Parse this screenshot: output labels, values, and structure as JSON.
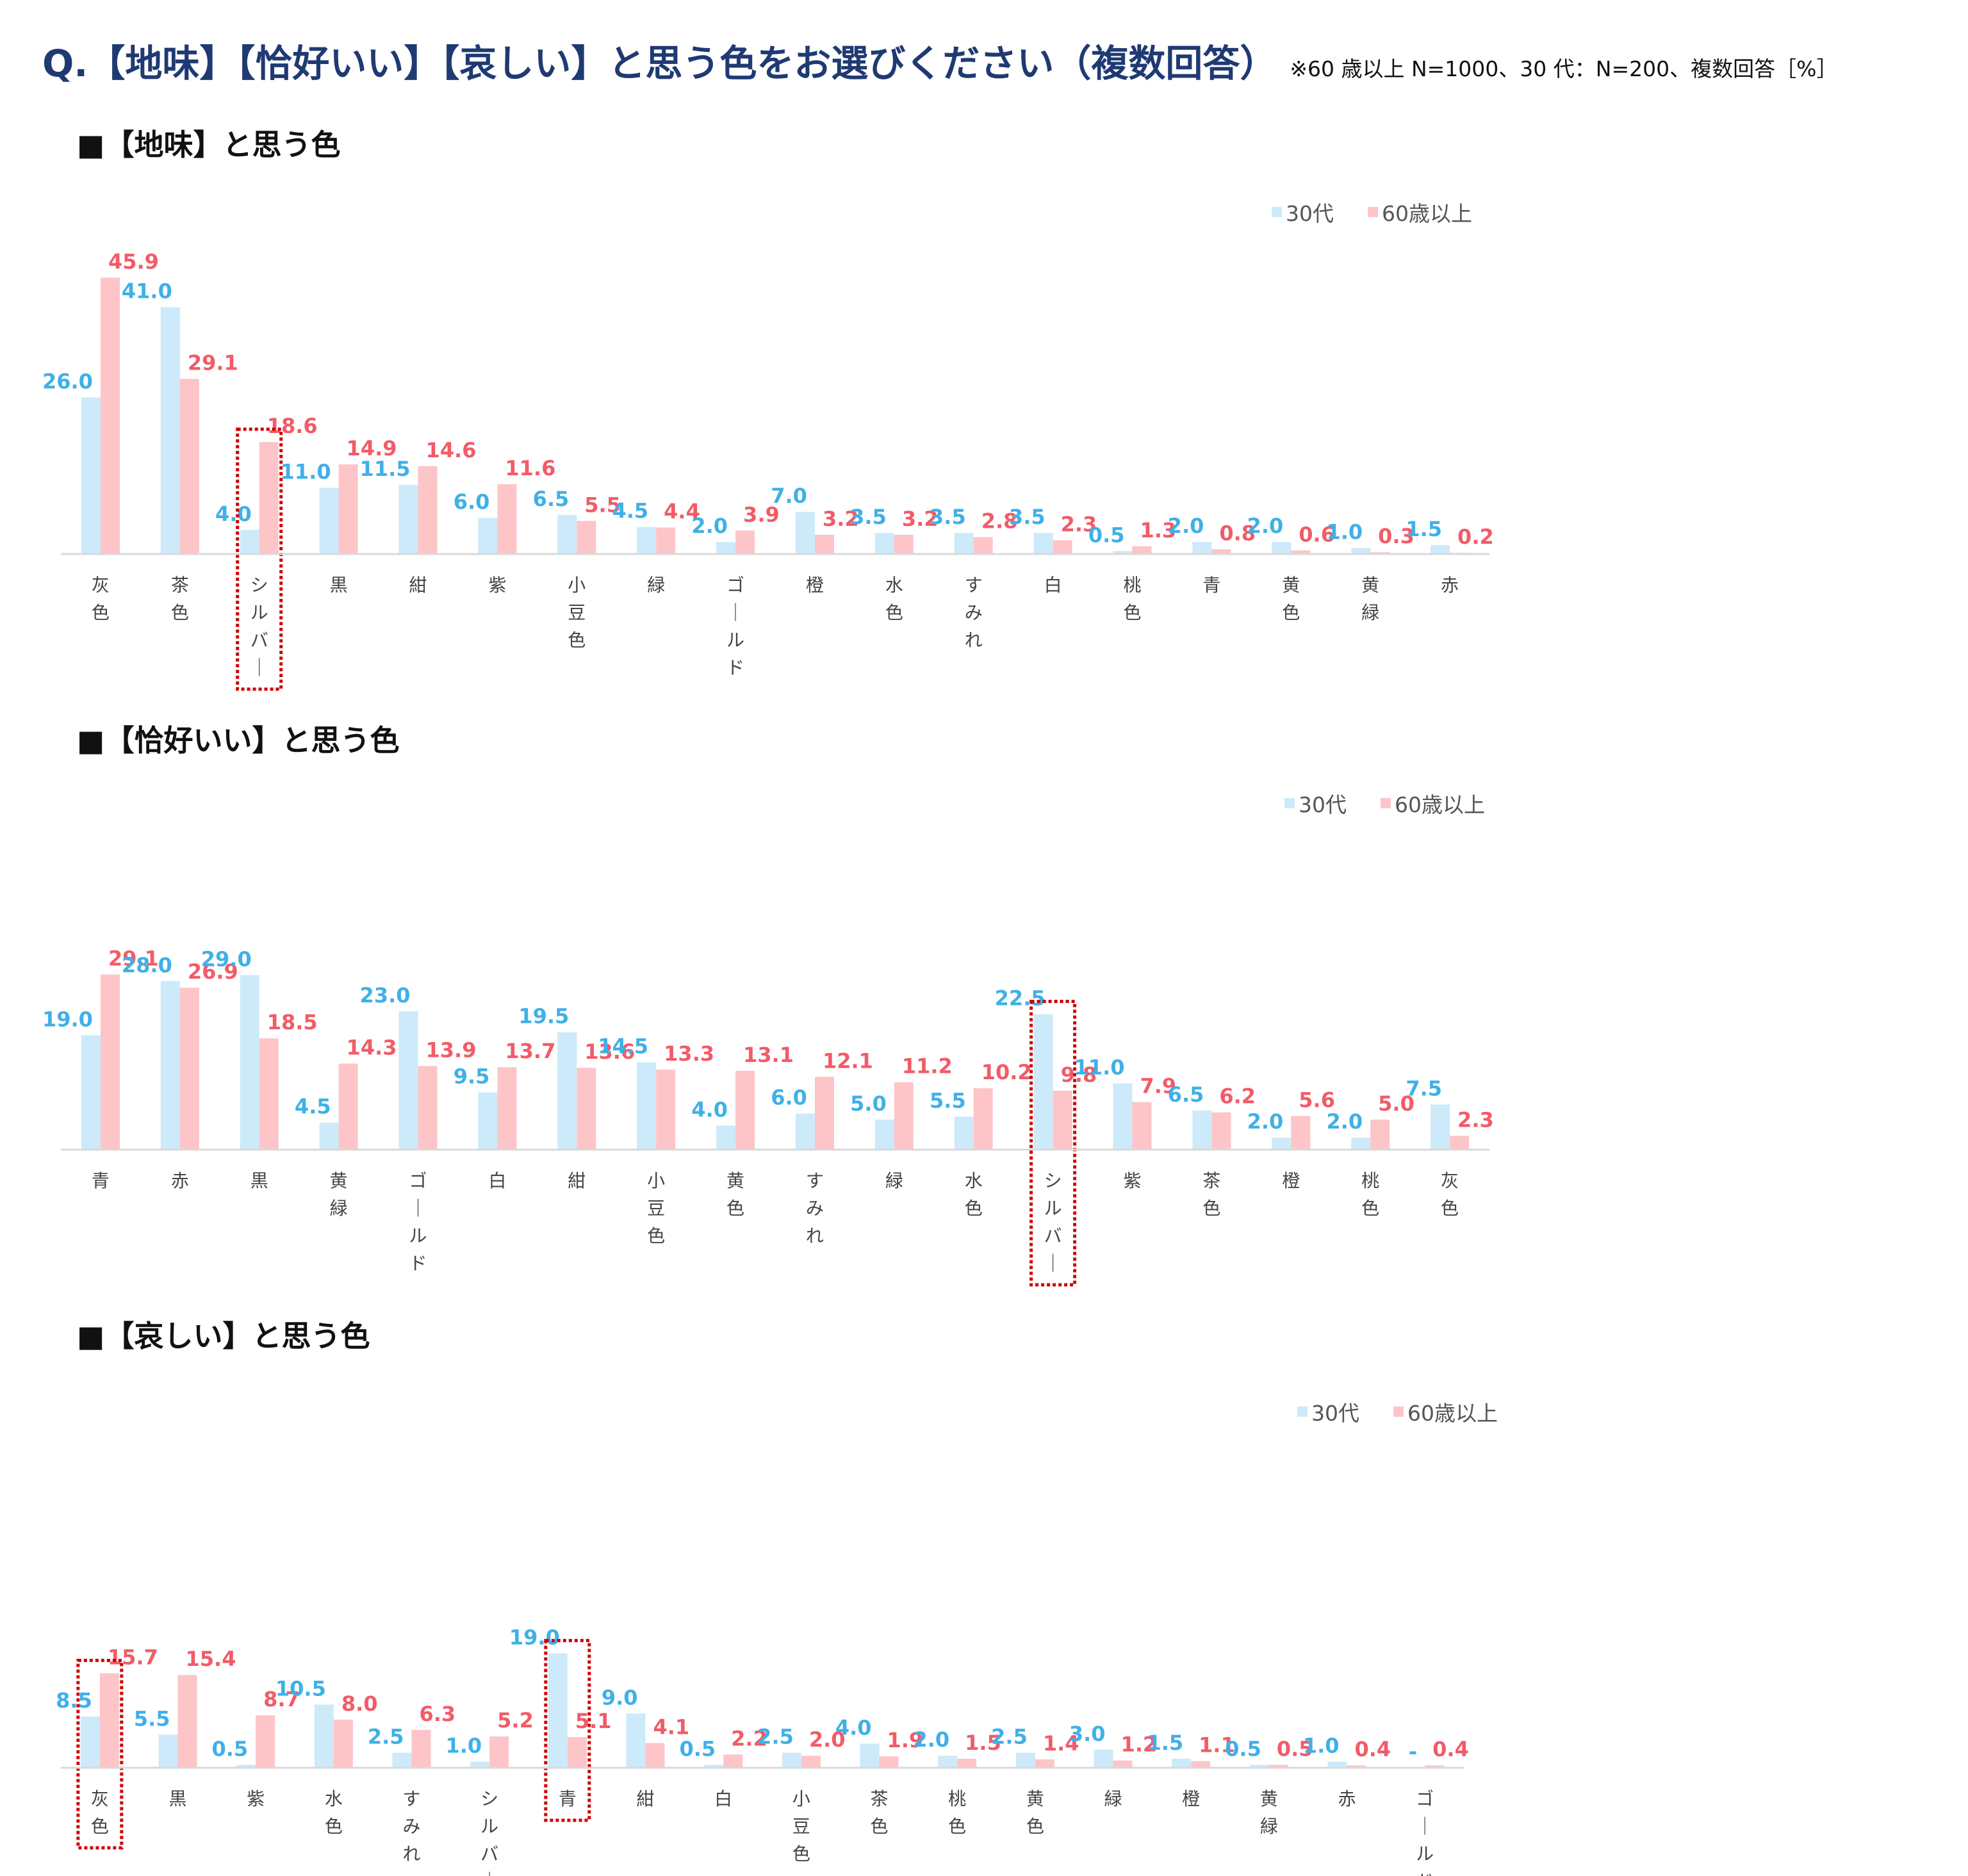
{
  "header": {
    "title": "Q.【地味】【恰好いい】【哀しい】と思う色をお選びください（複数回答）",
    "note": "※60 歳以上 N=1000、30 代：N=200、複数回答［%］"
  },
  "colors": {
    "series_30s": "#cdeafa",
    "series_60s": "#fdc5c8",
    "label_30s": "#3fb0e8",
    "label_60s": "#f25b67",
    "highlight": "#cc0000",
    "axis": "#d9d9d9"
  },
  "chart_data": [
    {
      "type": "bar",
      "title": "■【地味】と思う色",
      "legend_position": "top-right",
      "grid": false,
      "ylim": [
        0,
        50
      ],
      "categories": [
        "灰色",
        "茶色",
        "シルバー",
        "黒",
        "紺",
        "紫",
        "小豆色",
        "緑",
        "ゴールド",
        "橙",
        "水色",
        "すみれ",
        "白",
        "桃色",
        "青",
        "黄色",
        "黄緑",
        "赤"
      ],
      "series": [
        {
          "name": "30代",
          "values": [
            26.0,
            41.0,
            4.0,
            11.0,
            11.5,
            6.0,
            6.5,
            4.5,
            2.0,
            7.0,
            3.5,
            3.5,
            3.5,
            0.5,
            2.0,
            2.0,
            1.0,
            1.5
          ],
          "labels": [
            "26.0",
            "41.0",
            "4.0",
            "11.0",
            "11.5",
            "6.0",
            "6.5",
            "4.5",
            "2.0",
            "7.0",
            "3.5",
            "3.5",
            "3.5",
            "0.5",
            "2.0",
            "2.0",
            "1.0",
            "1.5"
          ]
        },
        {
          "name": "60歳以上",
          "values": [
            45.9,
            29.1,
            18.6,
            14.9,
            14.6,
            11.6,
            5.5,
            4.4,
            3.9,
            3.2,
            3.2,
            2.8,
            2.3,
            1.3,
            0.8,
            0.6,
            0.3,
            0.2
          ],
          "labels": [
            "45.9",
            "29.1",
            "18.6",
            "14.9",
            "14.6",
            "11.6",
            "5.5",
            "4.4",
            "3.9",
            "3.2",
            "3.2",
            "2.8",
            "2.3",
            "1.3",
            "0.8",
            "0.6",
            "0.3",
            "0.2"
          ]
        }
      ],
      "highlight_categories": [
        "シルバー"
      ]
    },
    {
      "type": "bar",
      "title": "■【恰好いい】と思う色",
      "legend_position": "top-right",
      "grid": false,
      "ylim": [
        0,
        50
      ],
      "categories": [
        "青",
        "赤",
        "黒",
        "黄緑",
        "ゴールド",
        "白",
        "紺",
        "小豆色",
        "黄色",
        "すみれ",
        "緑",
        "水色",
        "シルバー",
        "紫",
        "茶色",
        "橙",
        "桃色",
        "灰色"
      ],
      "series": [
        {
          "name": "30代",
          "values": [
            19.0,
            28.0,
            29.0,
            4.5,
            23.0,
            9.5,
            19.5,
            14.5,
            4.0,
            6.0,
            5.0,
            5.5,
            22.5,
            11.0,
            6.5,
            2.0,
            2.0,
            7.5
          ],
          "labels": [
            "19.0",
            "28.0",
            "29.0",
            "4.5",
            "23.0",
            "9.5",
            "19.5",
            "14.5",
            "4.0",
            "6.0",
            "5.0",
            "5.5",
            "22.5",
            "11.0",
            "6.5",
            "2.0",
            "2.0",
            "7.5"
          ]
        },
        {
          "name": "60歳以上",
          "values": [
            29.1,
            26.9,
            18.5,
            14.3,
            13.9,
            13.7,
            13.6,
            13.3,
            13.1,
            12.1,
            11.2,
            10.2,
            9.8,
            7.9,
            6.2,
            5.6,
            5.0,
            2.3
          ],
          "labels": [
            "29.1",
            "26.9",
            "18.5",
            "14.3",
            "13.9",
            "13.7",
            "13.6",
            "13.3",
            "13.1",
            "12.1",
            "11.2",
            "10.2",
            "9.8",
            "7.9",
            "6.2",
            "5.6",
            "5.0",
            "2.3"
          ]
        }
      ],
      "highlight_categories": [
        "シルバー"
      ]
    },
    {
      "type": "bar",
      "title": "■【哀しい】と思う色",
      "legend_position": "top-right",
      "grid": false,
      "ylim": [
        0,
        50
      ],
      "categories": [
        "灰色",
        "黒",
        "紫",
        "水色",
        "すみれ",
        "シルバー",
        "青",
        "紺",
        "白",
        "小豆色",
        "茶色",
        "桃色",
        "黄色",
        "緑",
        "橙",
        "黄緑",
        "赤",
        "ゴールド"
      ],
      "series": [
        {
          "name": "30代",
          "values": [
            8.5,
            5.5,
            0.5,
            10.5,
            2.5,
            1.0,
            19.0,
            9.0,
            0.5,
            2.5,
            4.0,
            2.0,
            2.5,
            3.0,
            1.5,
            0.5,
            1.0,
            0
          ],
          "labels": [
            "8.5",
            "5.5",
            "0.5",
            "10.5",
            "2.5",
            "1.0",
            "19.0",
            "9.0",
            "0.5",
            "2.5",
            "4.0",
            "2.0",
            "2.5",
            "3.0",
            "1.5",
            "0.5",
            "1.0",
            "-"
          ]
        },
        {
          "name": "60歳以上",
          "values": [
            15.7,
            15.4,
            8.7,
            8.0,
            6.3,
            5.2,
            5.1,
            4.1,
            2.2,
            2.0,
            1.9,
            1.5,
            1.4,
            1.2,
            1.1,
            0.5,
            0.4,
            0.4
          ],
          "labels": [
            "15.7",
            "15.4",
            "8.7",
            "8.0",
            "6.3",
            "5.2",
            "5.1",
            "4.1",
            "2.2",
            "2.0",
            "1.9",
            "1.5",
            "1.4",
            "1.2",
            "1.1",
            "0.5",
            "0.4",
            "0.4"
          ]
        }
      ],
      "highlight_categories": [
        "灰色",
        "青"
      ]
    }
  ]
}
